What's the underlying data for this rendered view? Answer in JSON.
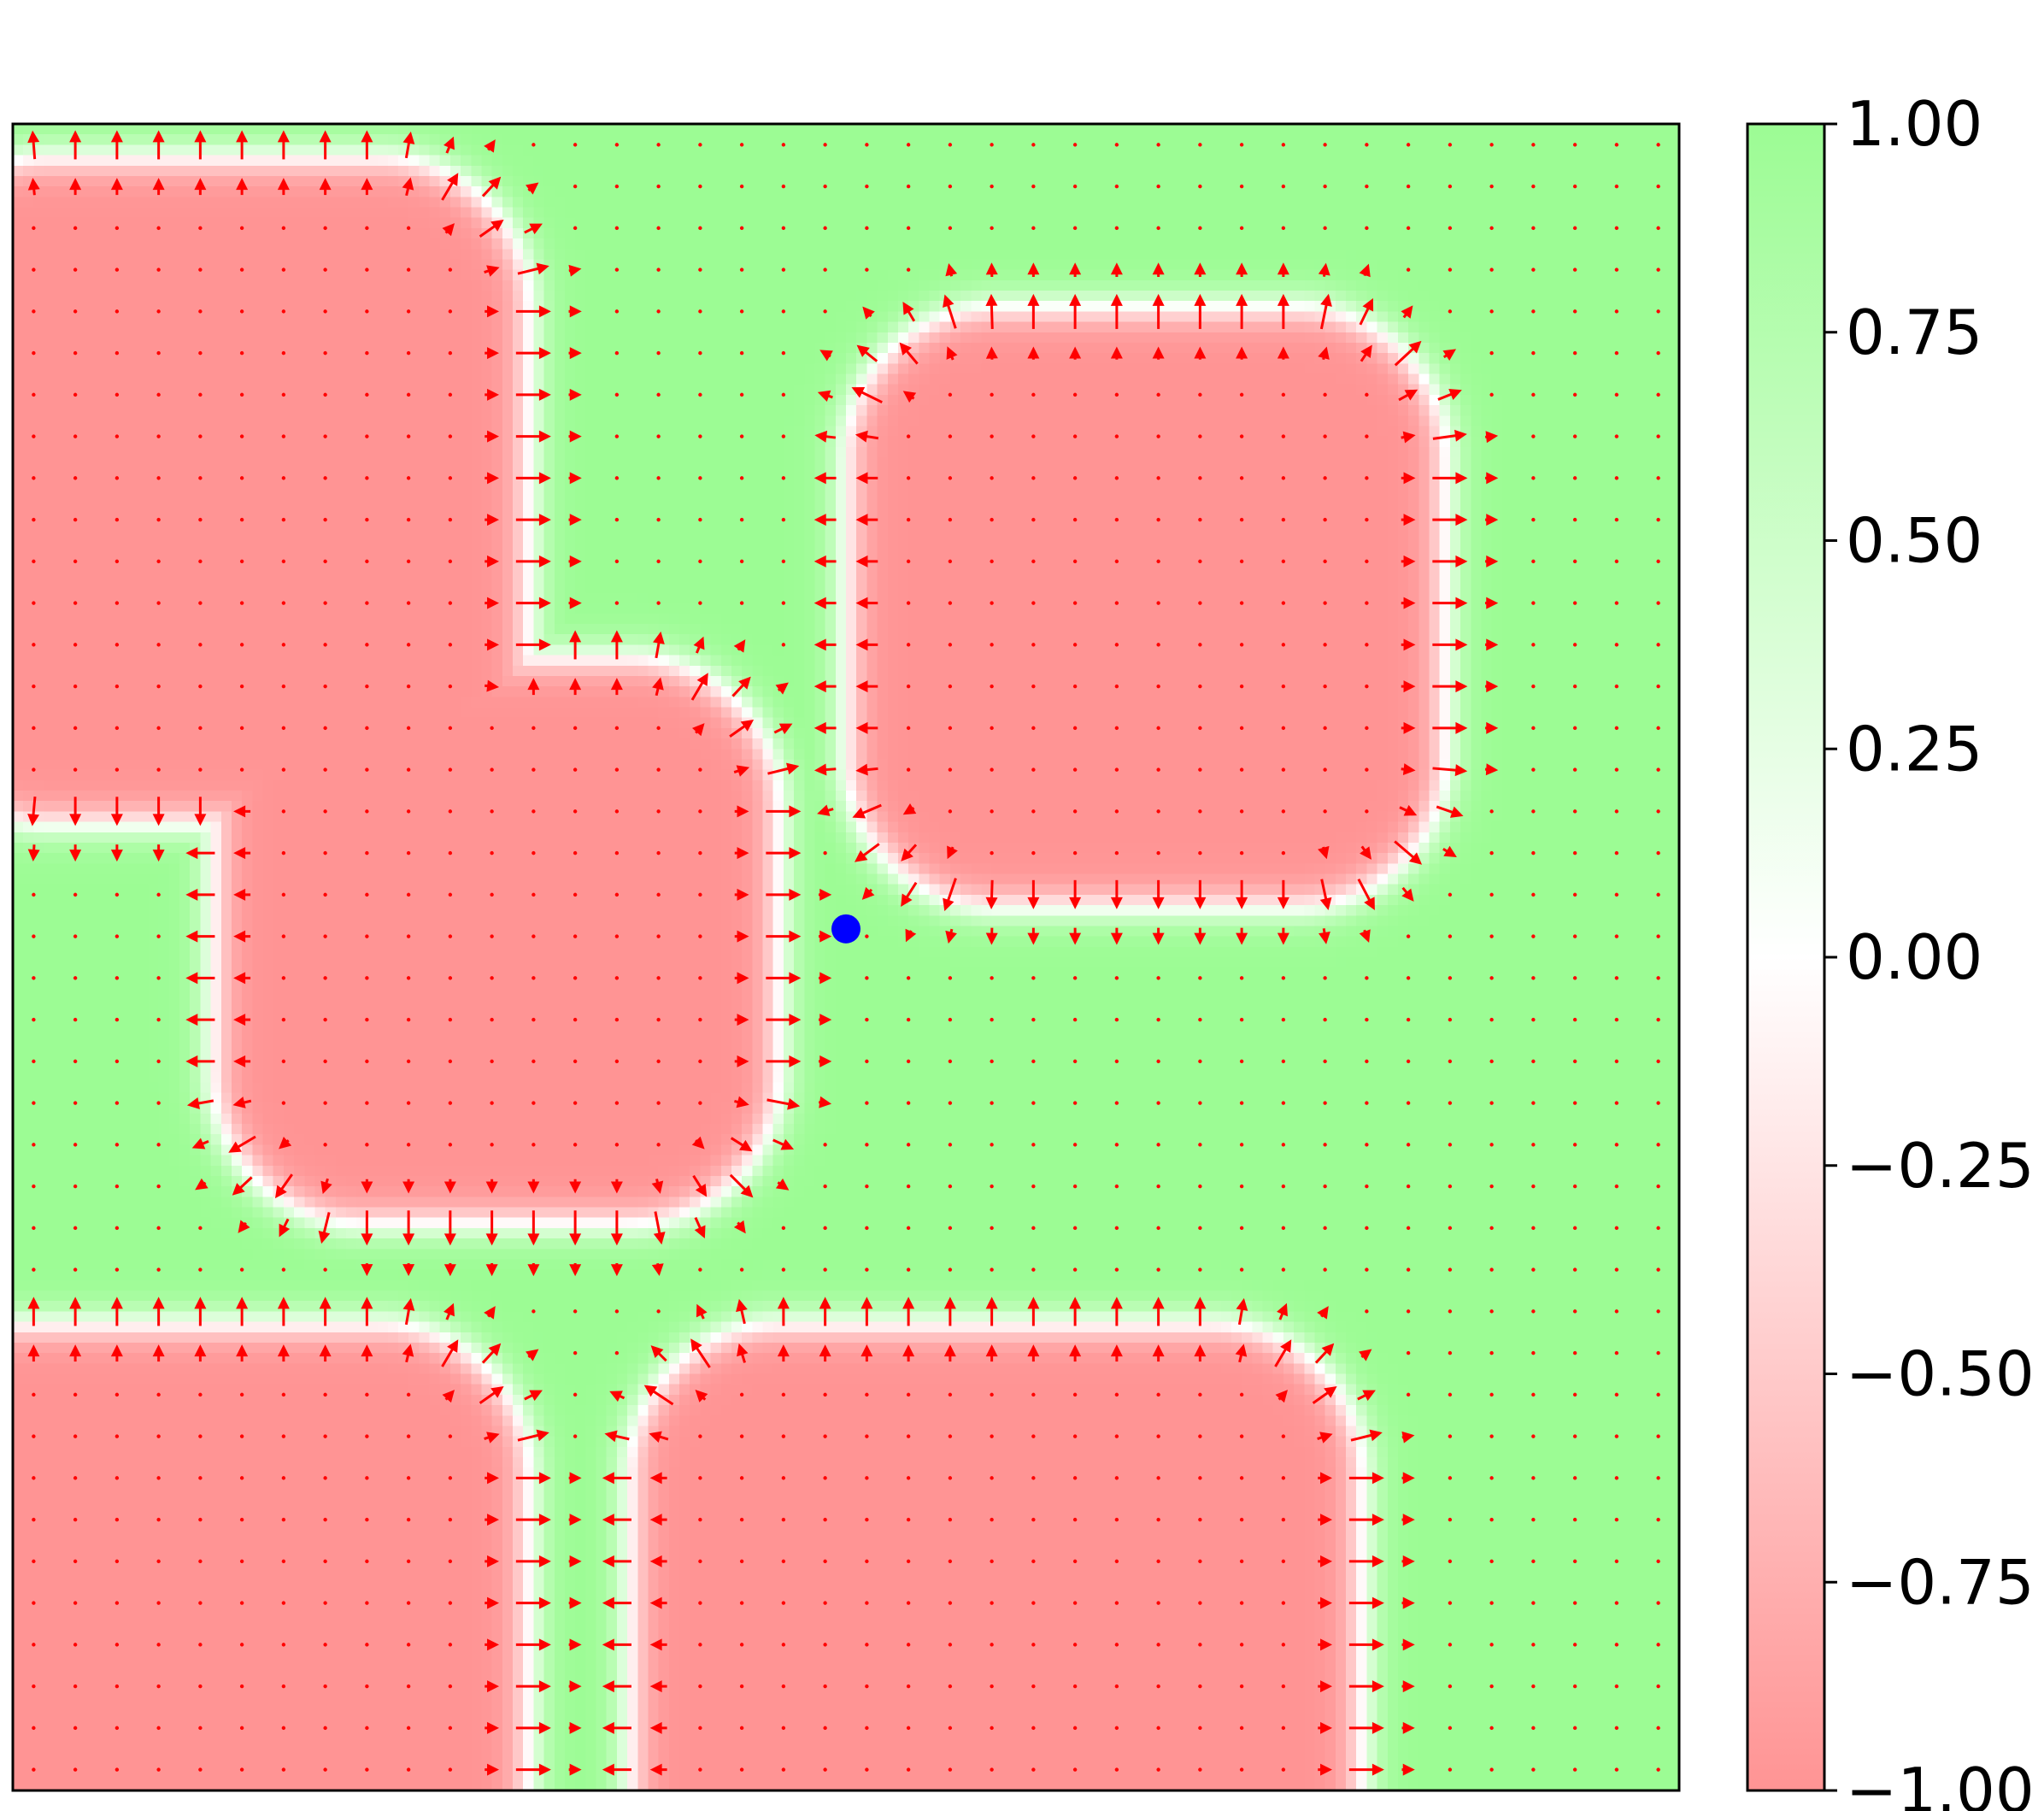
{
  "chart_data": {
    "type": "heatmap",
    "title": "",
    "xlabel": "",
    "ylabel": "",
    "axes_ticks_visible": false,
    "value_range": [
      -1.0,
      1.0
    ],
    "field": {
      "description_of_regions": "negative value (salmon) rounded blobs separated by positive value (green) channels with white interfaces near 0",
      "negative_blobs": [
        {
          "name": "top-left",
          "center": [
            0.12,
            0.22
          ],
          "half_size": [
            0.19,
            0.2
          ]
        },
        {
          "name": "top-right",
          "center": [
            0.68,
            0.29
          ],
          "half_size": [
            0.18,
            0.18
          ]
        },
        {
          "name": "middle-left",
          "center": [
            0.29,
            0.49
          ],
          "half_size": [
            0.17,
            0.17
          ]
        },
        {
          "name": "bottom-left",
          "center": [
            0.1,
            0.9
          ],
          "half_size": [
            0.21,
            0.18
          ]
        },
        {
          "name": "bottom-right",
          "center": [
            0.59,
            0.92
          ],
          "half_size": [
            0.22,
            0.2
          ]
        }
      ]
    },
    "quiver": {
      "color": "#ff0000",
      "description": "red arrows on a regular grid, large along interfaces, near-zero (dots) inside uniform regions"
    },
    "marker": {
      "x": 0.5,
      "y": 0.483,
      "color": "#0000ff"
    },
    "colorbar": {
      "ticks": [
        "1.00",
        "0.75",
        "0.50",
        "0.25",
        "0.00",
        "−0.25",
        "−0.50",
        "−0.75",
        "−1.00"
      ],
      "tick_values": [
        1.0,
        0.75,
        0.5,
        0.25,
        0.0,
        -0.25,
        -0.5,
        -0.75,
        -1.0
      ],
      "colormap": [
        "#ff9494",
        "#ffffff",
        "#9cfc94"
      ]
    }
  },
  "colors": {
    "positive": "#9cfc94",
    "negative": "#ff9494",
    "zero": "#ffffff",
    "arrow": "#ff0000",
    "marker": "#0000ff"
  }
}
